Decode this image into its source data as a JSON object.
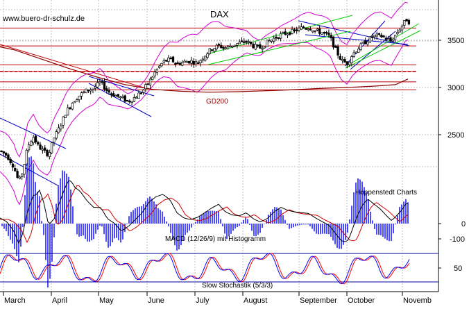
{
  "chart_data": {
    "type": "candlestick",
    "watermark": "www.buero-dr-schulz.de",
    "title": "DAX",
    "credit": "Hoppenstedt Charts",
    "y_ticks": [
      {
        "value": 3500,
        "label": "3500"
      },
      {
        "value": 3000,
        "label": "3000"
      },
      {
        "value": 2500,
        "label": "2500"
      }
    ],
    "ylim": [
      2000,
      3800
    ],
    "x_months": [
      "March",
      "April",
      "May",
      "June",
      "July",
      "August",
      "September",
      "October",
      "Novemb"
    ],
    "moving_average": {
      "label": "GD200",
      "points": [
        [
          0,
          3430
        ],
        [
          20,
          3400
        ],
        [
          60,
          3300
        ],
        [
          100,
          3200
        ],
        [
          140,
          3110
        ],
        [
          180,
          3030
        ],
        [
          220,
          2980
        ],
        [
          260,
          2960
        ],
        [
          300,
          2950
        ],
        [
          340,
          2955
        ],
        [
          380,
          2965
        ],
        [
          420,
          2975
        ],
        [
          460,
          2990
        ],
        [
          500,
          3000
        ],
        [
          540,
          3015
        ],
        [
          570,
          3030
        ],
        [
          588,
          3090
        ]
      ]
    },
    "resistance_levels": [
      3630,
      3440,
      3240,
      3170,
      3060,
      2975
    ],
    "dashed_level": 3165,
    "price_path": [
      [
        0,
        2330
      ],
      [
        10,
        2280
      ],
      [
        20,
        2160
      ],
      [
        27,
        2000
      ],
      [
        33,
        2120
      ],
      [
        40,
        2380
      ],
      [
        48,
        2480
      ],
      [
        55,
        2380
      ],
      [
        62,
        2330
      ],
      [
        70,
        2290
      ],
      [
        78,
        2470
      ],
      [
        86,
        2580
      ],
      [
        95,
        2740
      ],
      [
        105,
        2850
      ],
      [
        115,
        2920
      ],
      [
        125,
        2970
      ],
      [
        135,
        2990
      ],
      [
        145,
        3060
      ],
      [
        155,
        2960
      ],
      [
        165,
        2920
      ],
      [
        175,
        2890
      ],
      [
        185,
        2850
      ],
      [
        195,
        2900
      ],
      [
        205,
        2960
      ],
      [
        215,
        3060
      ],
      [
        225,
        3180
      ],
      [
        235,
        3270
      ],
      [
        245,
        3300
      ],
      [
        255,
        3250
      ],
      [
        265,
        3270
      ],
      [
        275,
        3280
      ],
      [
        285,
        3260
      ],
      [
        295,
        3340
      ],
      [
        305,
        3410
      ],
      [
        315,
        3440
      ],
      [
        325,
        3420
      ],
      [
        335,
        3450
      ],
      [
        345,
        3470
      ],
      [
        355,
        3490
      ],
      [
        365,
        3440
      ],
      [
        375,
        3420
      ],
      [
        385,
        3480
      ],
      [
        395,
        3520
      ],
      [
        405,
        3560
      ],
      [
        415,
        3580
      ],
      [
        425,
        3600
      ],
      [
        435,
        3630
      ],
      [
        445,
        3640
      ],
      [
        455,
        3600
      ],
      [
        465,
        3580
      ],
      [
        475,
        3540
      ],
      [
        485,
        3380
      ],
      [
        492,
        3290
      ],
      [
        500,
        3250
      ],
      [
        508,
        3350
      ],
      [
        518,
        3430
      ],
      [
        528,
        3490
      ],
      [
        538,
        3540
      ],
      [
        548,
        3550
      ],
      [
        556,
        3520
      ],
      [
        564,
        3490
      ],
      [
        572,
        3580
      ],
      [
        580,
        3660
      ],
      [
        586,
        3720
      ],
      [
        590,
        3690
      ]
    ],
    "macd": {
      "label": "MACD (12/26/9) mit Histogramm",
      "ticks": [
        {
          "value": 0,
          "label": "0"
        },
        {
          "value": -100,
          "label": "-100"
        }
      ]
    },
    "stochastic": {
      "label": "Slow Stochastik (5/3/3)",
      "ticks": [
        {
          "value": 50,
          "label": "50"
        }
      ]
    },
    "colors": {
      "grid": "#c0c0c0",
      "candle": "#000000",
      "bollinger": "#d000d0",
      "channel_green": "#00cc00",
      "trend_blue": "#0000c0",
      "levels_red": "#c00000",
      "ma": "#8b0000",
      "macd_line_1": "#000000",
      "macd_line_2": "#d00000",
      "histogram": "#0000ff",
      "stoch_1": "#0000ff",
      "stoch_2": "#ff0000",
      "stoch_bounds": "#0000a0"
    }
  }
}
